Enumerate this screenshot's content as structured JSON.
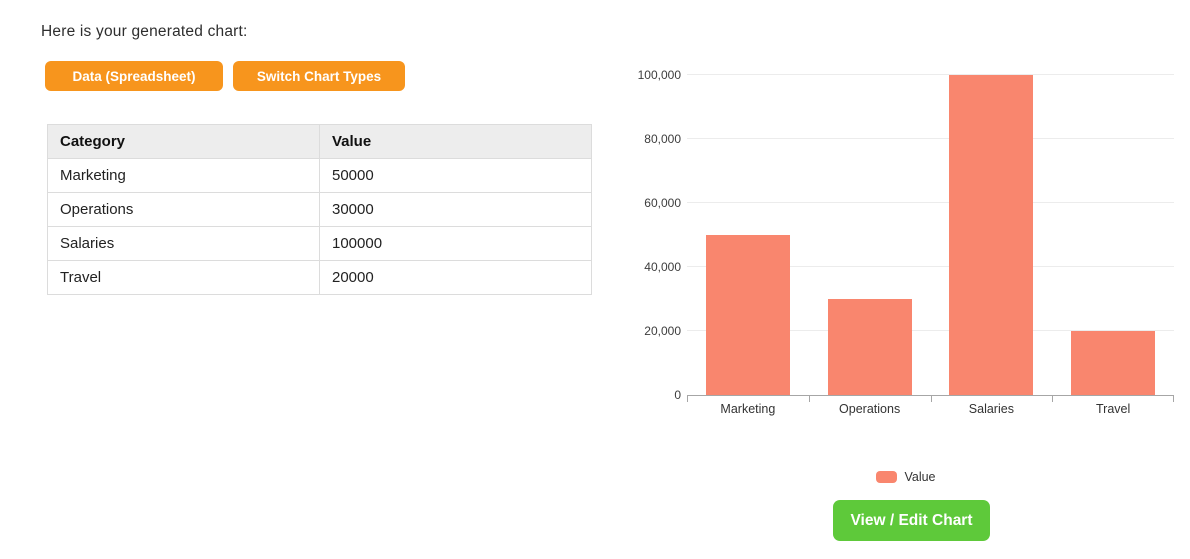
{
  "header": {
    "intro_text": "Here is your generated chart:"
  },
  "toolbar": {
    "data_button_label": "Data (Spreadsheet)",
    "switch_button_label": "Switch Chart Types"
  },
  "table": {
    "columns": [
      "Category",
      "Value"
    ],
    "rows": [
      [
        "Marketing",
        "50000"
      ],
      [
        "Operations",
        "30000"
      ],
      [
        "Salaries",
        "100000"
      ],
      [
        "Travel",
        "20000"
      ]
    ]
  },
  "chart_data": {
    "type": "bar",
    "title": "",
    "categories": [
      "Marketing",
      "Operations",
      "Salaries",
      "Travel"
    ],
    "series": [
      {
        "name": "Value",
        "values": [
          50000,
          30000,
          100000,
          20000
        ],
        "color": "#f9866e"
      }
    ],
    "xlabel": "",
    "ylabel": "",
    "ylim": [
      0,
      100000
    ],
    "yticks": [
      0,
      20000,
      40000,
      60000,
      80000,
      100000
    ],
    "ytick_labels": [
      "0",
      "20,000",
      "40,000",
      "60,000",
      "80,000",
      "100,000"
    ],
    "grid": true,
    "legend_position": "bottom-center"
  },
  "actions": {
    "view_edit_label": "View / Edit Chart"
  },
  "colors": {
    "accent_orange": "#f7951d",
    "accent_green": "#5ec93a",
    "bar_salmon": "#f9866e",
    "table_header_bg": "#ededed"
  }
}
